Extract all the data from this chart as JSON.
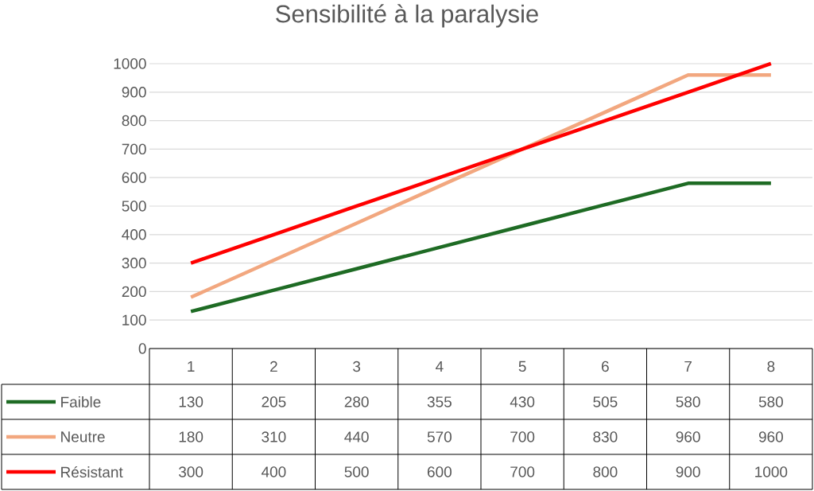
{
  "chart_data": {
    "type": "line",
    "title": "Sensibilité à la paralysie",
    "categories": [
      "1",
      "2",
      "3",
      "4",
      "5",
      "6",
      "7",
      "8"
    ],
    "series": [
      {
        "name": "Faible",
        "color": "#1e6b24",
        "values": [
          130,
          205,
          280,
          355,
          430,
          505,
          580,
          580
        ]
      },
      {
        "name": "Neutre",
        "color": "#f2a77f",
        "values": [
          180,
          310,
          440,
          570,
          700,
          830,
          960,
          960
        ]
      },
      {
        "name": "Résistant",
        "color": "#ff0000",
        "values": [
          300,
          400,
          500,
          600,
          700,
          800,
          900,
          1000
        ]
      }
    ],
    "ylim": [
      0,
      1000
    ],
    "yticks": [
      0,
      100,
      200,
      300,
      400,
      500,
      600,
      700,
      800,
      900,
      1000
    ],
    "grid": "y",
    "legend": "bottom",
    "data_labels": true
  }
}
